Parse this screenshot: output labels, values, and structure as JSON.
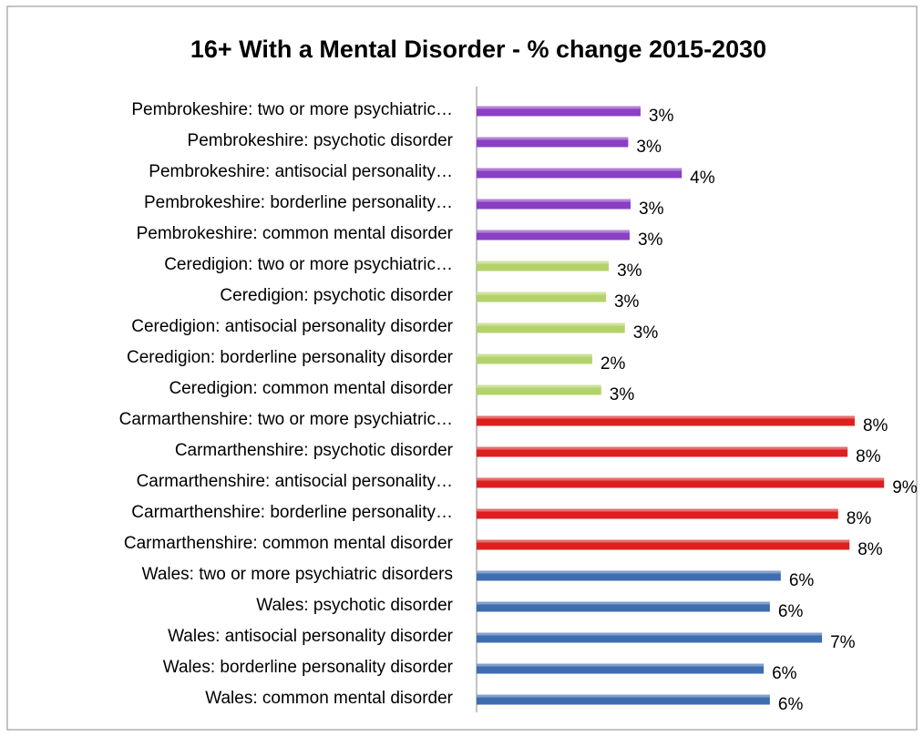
{
  "chart_data": {
    "type": "bar",
    "orientation": "horizontal",
    "title": "16+ With a Mental Disorder - % change 2015-2030",
    "categories": [
      "Pembrokeshire:  two or more psychiatric…",
      "Pembrokeshire:  psychotic disorder",
      "Pembrokeshire:  antisocial personality…",
      "Pembrokeshire:  borderline personality…",
      "Pembrokeshire: common mental disorder",
      "Ceredigion:  two or more psychiatric…",
      "Ceredigion:  psychotic disorder",
      "Ceredigion:  antisocial personality disorder",
      "Ceredigion:  borderline personality disorder",
      "Ceredigion:  common mental disorder",
      "Carmarthenshire: two or more psychiatric…",
      "Carmarthenshire:  psychotic disorder",
      "Carmarthenshire:  antisocial personality…",
      "Carmarthenshire:  borderline personality…",
      "Carmarthenshire: common mental disorder",
      "Wales: two or more psychiatric disorders",
      "Wales: psychotic disorder",
      "Wales:  antisocial personality disorder",
      "Wales:  borderline personality disorder",
      "Wales: common mental disorder"
    ],
    "values": [
      3.46,
      3.2,
      4.33,
      3.25,
      3.23,
      2.79,
      2.73,
      3.13,
      2.44,
      2.63,
      7.98,
      7.83,
      8.6,
      7.63,
      7.87,
      6.42,
      6.19,
      7.29,
      6.06,
      6.19
    ],
    "value_labels": [
      "3%",
      "3%",
      "4%",
      "3%",
      "3%",
      "3%",
      "3%",
      "3%",
      "2%",
      "3%",
      "8%",
      "8%",
      "9%",
      "8%",
      "8%",
      "6%",
      "6%",
      "7%",
      "6%",
      "6%"
    ],
    "colors": [
      "#8a3fc4",
      "#8a3fc4",
      "#8a3fc4",
      "#8a3fc4",
      "#8a3fc4",
      "#b3d36a",
      "#b3d36a",
      "#b3d36a",
      "#b3d36a",
      "#b3d36a",
      "#dd1f1f",
      "#dd1f1f",
      "#dd1f1f",
      "#dd1f1f",
      "#dd1f1f",
      "#3e6db0",
      "#3e6db0",
      "#3e6db0",
      "#3e6db0",
      "#3e6db0"
    ],
    "xlim": [
      0,
      9
    ]
  }
}
